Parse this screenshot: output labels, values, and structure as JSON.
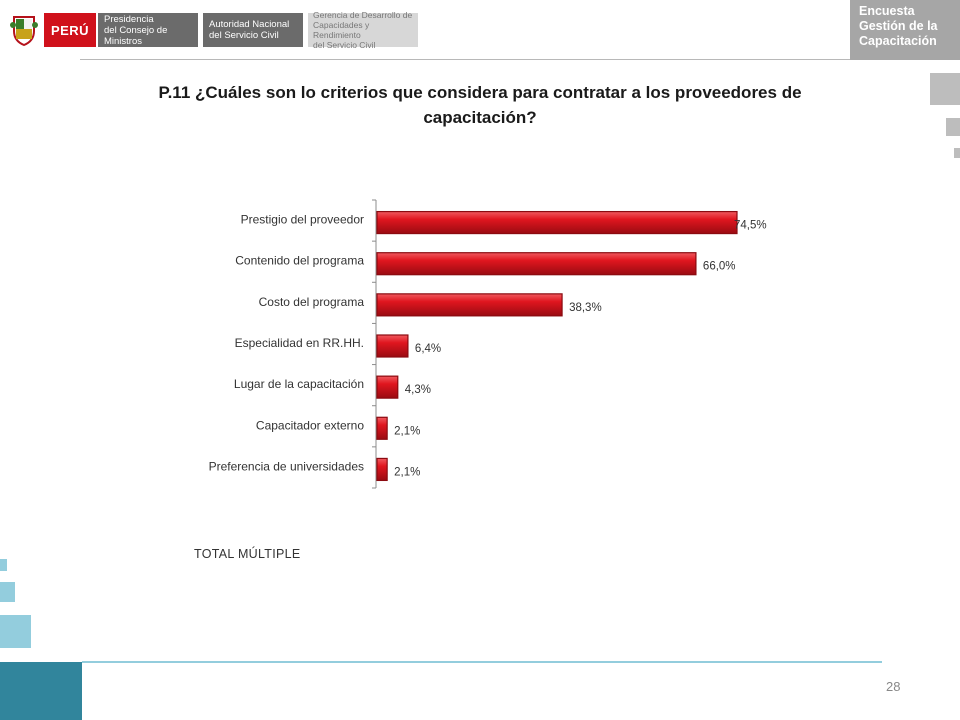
{
  "header": {
    "peru_label": "PERÚ",
    "box1": [
      "Presidencia",
      "del Consejo de Ministros"
    ],
    "box2": [
      "Autoridad Nacional",
      "del Servicio Civil"
    ],
    "box3": [
      "Gerencia de Desarrollo de",
      "Capacidades y Rendimiento",
      "del Servicio Civil"
    ],
    "survey": [
      "Encuesta",
      "Gestión de la",
      "Capacitación"
    ]
  },
  "title_line1": "P.11 ¿Cuáles son lo criterios que considera  para contratar a los proveedores de",
  "title_line2": "capacitación?",
  "note": "TOTAL MÚLTIPLE",
  "page_number": "28",
  "colors": {
    "bar": "#d0111b",
    "bar_dark": "#8b0a10",
    "accent_blue": "#31859c",
    "light_blue": "#93cddd"
  },
  "chart_data": {
    "type": "bar",
    "orientation": "horizontal",
    "categories": [
      "Prestigio del proveedor",
      "Contenido del programa",
      "Costo del programa",
      "Especialidad en RR.HH.",
      "Lugar de la capacitación",
      "Capacitador externo",
      "Preferencia de universidades"
    ],
    "values": [
      74.5,
      66.0,
      38.3,
      6.4,
      4.3,
      2.1,
      2.1
    ],
    "data_labels": [
      "74,5%",
      "66,0%",
      "38,3%",
      "6,4%",
      "4,3%",
      "2,1%",
      "2,1%"
    ],
    "unit": "%",
    "xlim": [
      0,
      80
    ],
    "grid": false,
    "legend": "none"
  }
}
